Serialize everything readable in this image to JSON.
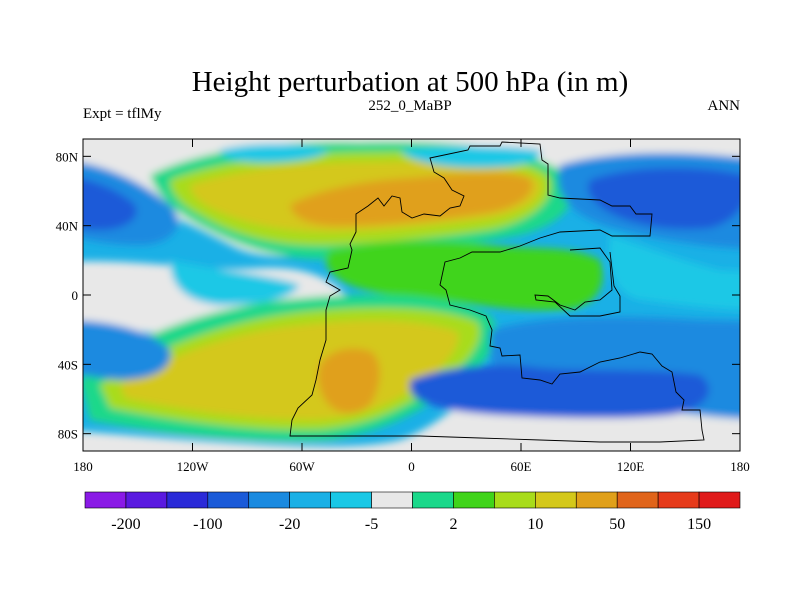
{
  "title": "Height perturbation at 500 hPa (in m)",
  "subtitle_left": "Expt = tflMy",
  "subtitle_center": "252_0_MaBP",
  "subtitle_right": "ANN",
  "chart_data": {
    "type": "heatmap",
    "title": "Height perturbation at 500 hPa (in m)",
    "x_range": [
      -180,
      180
    ],
    "y_range": [
      -90,
      90
    ],
    "x_ticks": [
      {
        "value": -180,
        "label": "180"
      },
      {
        "value": -120,
        "label": "120W"
      },
      {
        "value": -60,
        "label": "60W"
      },
      {
        "value": 0,
        "label": "0"
      },
      {
        "value": 60,
        "label": "60E"
      },
      {
        "value": 120,
        "label": "120E"
      },
      {
        "value": 180,
        "label": "180"
      }
    ],
    "y_ticks": [
      {
        "value": 80,
        "label": "80N"
      },
      {
        "value": 40,
        "label": "40N"
      },
      {
        "value": 0,
        "label": "0"
      },
      {
        "value": -40,
        "label": "40S"
      },
      {
        "value": -80,
        "label": "80S"
      }
    ],
    "colorbar": {
      "colors": [
        "#8a1ae6",
        "#5a1ae0",
        "#2a2ad8",
        "#1a5ad8",
        "#1a8ae0",
        "#1ab0e6",
        "#1ac8e6",
        "#e8e8e8",
        "#1ad88a",
        "#40d41a",
        "#a8dc1a",
        "#d4c81a",
        "#e0a01a",
        "#e0641a",
        "#e63a1a",
        "#e01a1a"
      ],
      "labels": [
        "-200",
        "-100",
        "-20",
        "-5",
        "2",
        "10",
        "50",
        "150"
      ]
    }
  }
}
